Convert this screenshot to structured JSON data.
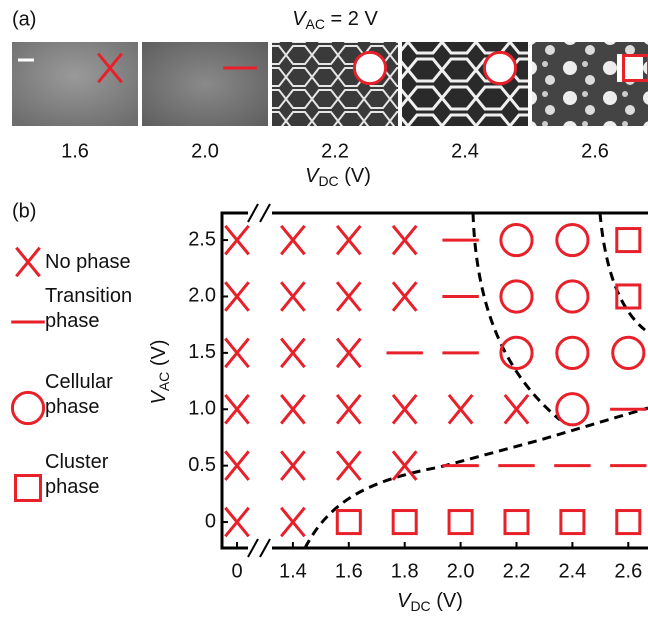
{
  "panel_a": {
    "label": "(a)",
    "title": {
      "symbol": "V",
      "sub": "AC",
      "rest": " = 2 V"
    },
    "images": [
      {
        "label": "1.6",
        "marker": "x"
      },
      {
        "label": "2.0",
        "marker": "dash"
      },
      {
        "label": "2.2",
        "marker": "circle"
      },
      {
        "label": "2.4",
        "marker": "circle"
      },
      {
        "label": "2.6",
        "marker": "square"
      }
    ],
    "xlabel": {
      "symbol": "V",
      "sub": "DC",
      "rest": " (V)"
    }
  },
  "chart_data": {
    "type": "scatter",
    "label": "(b)",
    "xlabel": {
      "symbol": "V",
      "sub": "DC",
      "rest": " (V)"
    },
    "ylabel": {
      "symbol": "V",
      "sub": "AC",
      "rest": " (V)"
    },
    "xticks": [
      0,
      1.4,
      1.6,
      1.8,
      {
        "value": 2,
        "label": "2.0"
      },
      2.2,
      2.4,
      2.6
    ],
    "x_axis_break": true,
    "ylim": [
      -0.23,
      2.74
    ],
    "yticks": [
      0,
      0.5,
      {
        "value": 1,
        "label": "1.0"
      },
      1.5,
      {
        "value": 2,
        "label": "2.0"
      },
      2.5
    ],
    "series": [
      {
        "name": "No phase",
        "marker": "x",
        "color": "#e8202a",
        "x": [
          0,
          1.4,
          1.6,
          1.8,
          0,
          1.4,
          1.6,
          1.8,
          0,
          1.4,
          1.6,
          0,
          1.4,
          1.6,
          1.8,
          2.0,
          2.2,
          0,
          1.4,
          1.6,
          1.8,
          0,
          1.4
        ],
        "values": [
          2.5,
          2.5,
          2.5,
          2.5,
          2,
          2,
          2,
          2,
          1.5,
          1.5,
          1.5,
          1,
          1,
          1,
          1,
          1,
          1,
          0.5,
          0.5,
          0.5,
          0.5,
          0,
          0
        ]
      },
      {
        "name": "Transition\nphase",
        "marker": "dash",
        "color": "#e8202a",
        "x": [
          2.0,
          2.0,
          1.8,
          2.0,
          2.6,
          2.0,
          2.2,
          2.4,
          2.6
        ],
        "values": [
          2.5,
          2,
          1.5,
          1.5,
          1,
          0.5,
          0.5,
          0.5,
          0.5
        ]
      },
      {
        "name": "Cellular\nphase",
        "marker": "circle",
        "color": "#e8202a",
        "x": [
          2.2,
          2.4,
          2.2,
          2.4,
          2.2,
          2.4,
          2.6,
          2.4
        ],
        "values": [
          2.5,
          2.5,
          2,
          2,
          1.5,
          1.5,
          1.5,
          1
        ]
      },
      {
        "name": "Cluster\nphase",
        "marker": "square",
        "color": "#e8202a",
        "x": [
          2.6,
          2.6,
          1.6,
          1.8,
          2.0,
          2.2,
          2.4,
          2.6
        ],
        "values": [
          2.5,
          2,
          0,
          0,
          0,
          0,
          0,
          0
        ]
      }
    ]
  }
}
